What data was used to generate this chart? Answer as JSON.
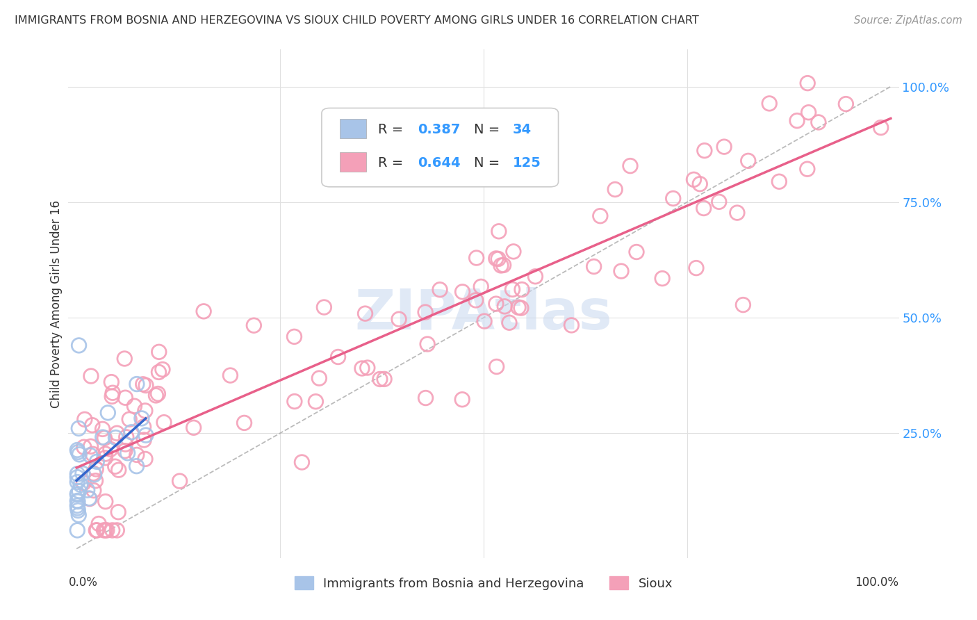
{
  "title": "IMMIGRANTS FROM BOSNIA AND HERZEGOVINA VS SIOUX CHILD POVERTY AMONG GIRLS UNDER 16 CORRELATION CHART",
  "source": "Source: ZipAtlas.com",
  "ylabel": "Child Poverty Among Girls Under 16",
  "legend_blue_R": "0.387",
  "legend_blue_N": "34",
  "legend_pink_R": "0.644",
  "legend_pink_N": "125",
  "legend_blue_label": "Immigrants from Bosnia and Herzegovina",
  "legend_pink_label": "Sioux",
  "blue_color": "#a8c4e8",
  "pink_color": "#f4a0b8",
  "blue_line_color": "#3366cc",
  "pink_line_color": "#e8608a",
  "dashed_line_color": "#aaaaaa",
  "watermark_color": "#c8d8f0",
  "background_color": "#ffffff",
  "grid_color": "#e0e0e0",
  "tick_color": "#3399ff",
  "text_color": "#333333",
  "rn_color": "#3399ff",
  "source_color": "#999999"
}
